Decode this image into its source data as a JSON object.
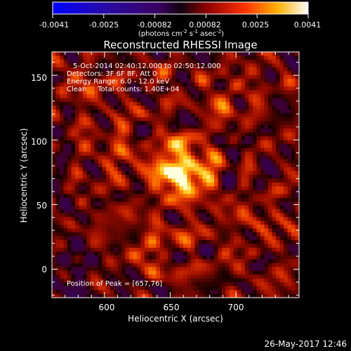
{
  "colorbar": {
    "ticks": [
      "-0.0041",
      "-0.0025",
      "-0.00082",
      "0.00082",
      "0.0025",
      "0.0041"
    ],
    "unit_text": "(photons cm",
    "unit_sup1": "-2",
    "unit_mid": " s",
    "unit_sup2": "-1",
    "unit_mid2": " asec",
    "unit_sup3": "-2",
    "unit_end": ")"
  },
  "chart_data": {
    "type": "heatmap",
    "title": "Reconstructed RHESSI Image",
    "xlabel": "Heliocentric X (arcsec)",
    "ylabel": "Heliocentric Y (arcsec)",
    "xlim": [
      560,
      748
    ],
    "ylim": [
      -22,
      168
    ],
    "xticks": [
      600,
      650,
      700
    ],
    "yticks": [
      0,
      50,
      100,
      150
    ],
    "clim": [
      -0.0041,
      0.0041
    ],
    "colormap": "red-temperature (blue-purple negative, red-orange-yellow-white positive)",
    "peak": {
      "x": 657,
      "y": 76
    },
    "annotations": [
      "5-Oct-2014 02:40:12.000 to 02:50:12.000",
      "Detectors: 3F 6F 8F, Att 0",
      "Energy Range: 6.0 - 12.0 keV",
      "Clean     Total counts: 1.40E+04"
    ],
    "peak_label": "Position of Peak = [657,76]"
  },
  "footer": {
    "date": "26-May-2017 12:46"
  }
}
